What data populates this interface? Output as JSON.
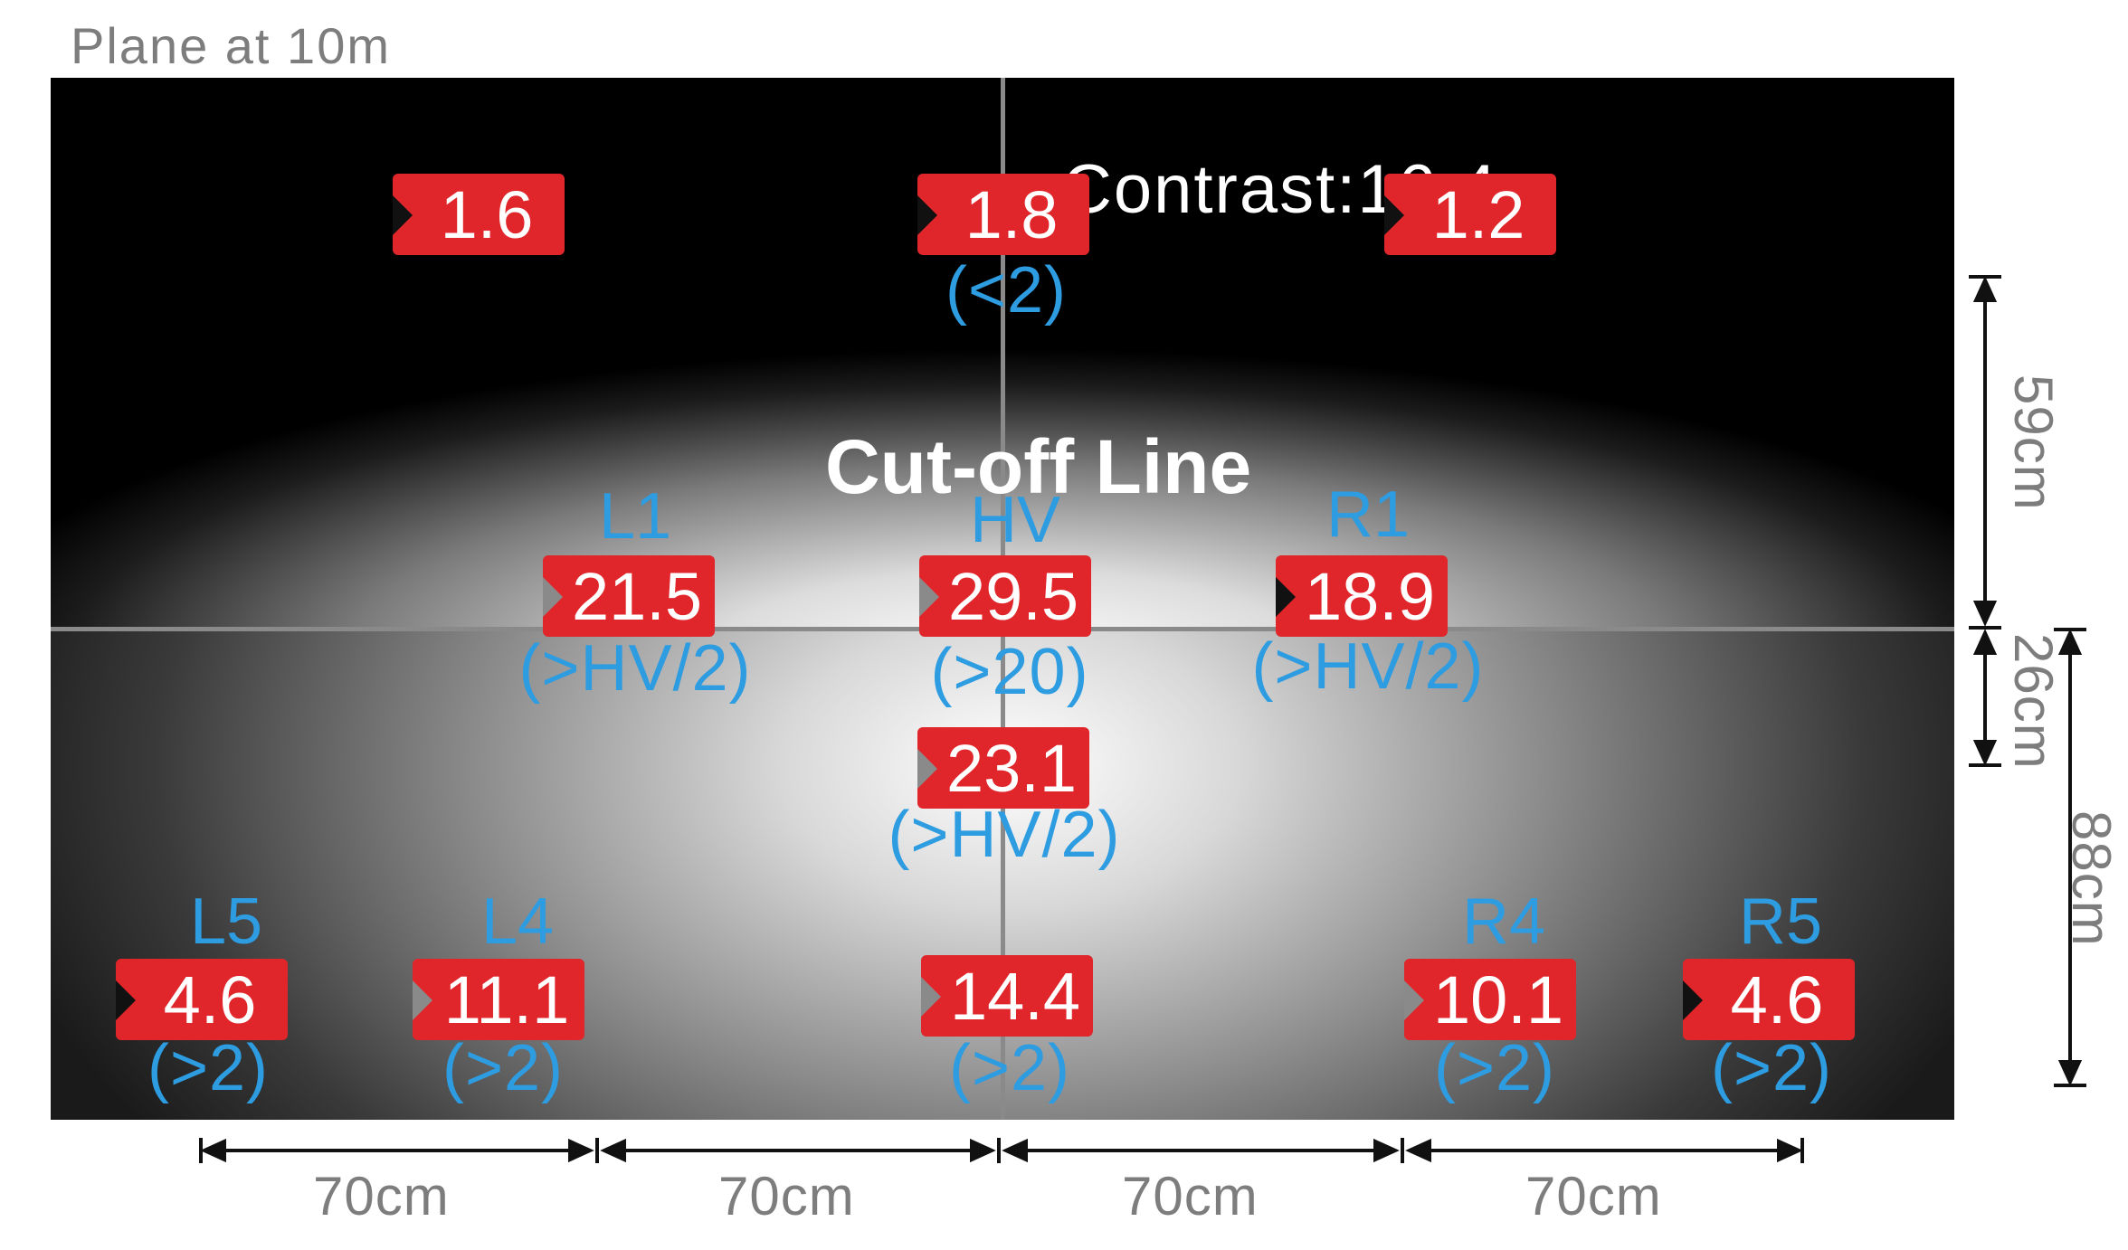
{
  "title": "Plane at 10m",
  "contrast_label": "Contrast:16.4",
  "cutoff_label": "Cut-off Line",
  "points": [
    {
      "id": "top-left",
      "value": "1.6",
      "label": "",
      "requirement": ""
    },
    {
      "id": "top-center",
      "value": "1.8",
      "label": "",
      "requirement": "(<2)"
    },
    {
      "id": "top-right",
      "value": "1.2",
      "label": "",
      "requirement": ""
    },
    {
      "id": "L1",
      "value": "21.5",
      "label": "L1",
      "requirement": "(>HV/2)"
    },
    {
      "id": "HV",
      "value": "29.5",
      "label": "HV",
      "requirement": "(>20)"
    },
    {
      "id": "R1",
      "value": "18.9",
      "label": "R1",
      "requirement": "(>HV/2)"
    },
    {
      "id": "below-HV",
      "value": "23.1",
      "label": "",
      "requirement": "(>HV/2)"
    },
    {
      "id": "L5",
      "value": "4.6",
      "label": "L5",
      "requirement": "(>2)"
    },
    {
      "id": "L4",
      "value": "11.1",
      "label": "L4",
      "requirement": "(>2)"
    },
    {
      "id": "bottom-center",
      "value": "14.4",
      "label": "",
      "requirement": "(>2)"
    },
    {
      "id": "R4",
      "value": "10.1",
      "label": "R4",
      "requirement": "(>2)"
    },
    {
      "id": "R5",
      "value": "4.6",
      "label": "R5",
      "requirement": "(>2)"
    }
  ],
  "dimensions": {
    "horizontal": [
      "70cm",
      "70cm",
      "70cm",
      "70cm"
    ],
    "vertical_upper": "59cm",
    "vertical_lower": "26cm",
    "vertical_right": "88cm"
  },
  "colors": {
    "value_box": "#e0262b",
    "label_blue": "#2e9ce0",
    "dimension_gray": "#7d7d7d"
  }
}
